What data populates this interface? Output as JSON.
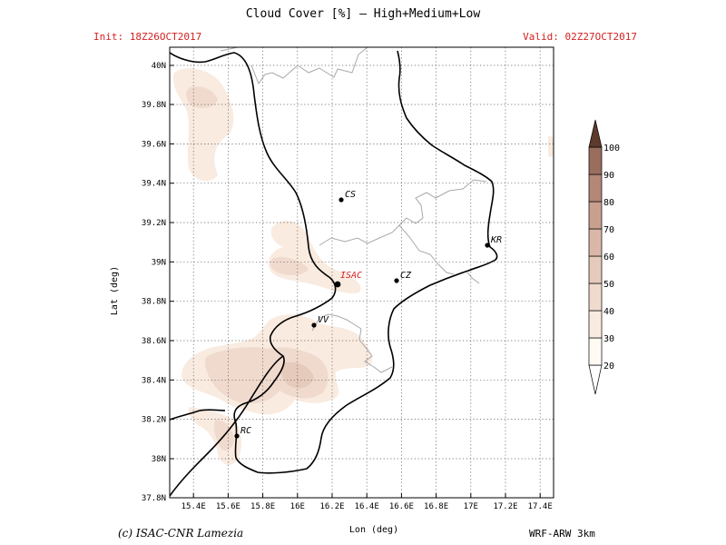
{
  "header": {
    "title": "Cloud Cover [%] — High+Medium+Low",
    "init": "Init: 18Z26OCT2017",
    "valid": "Valid: 02Z27OCT2017"
  },
  "axes": {
    "x_label": "Lon (deg)",
    "y_label": "Lat (deg)",
    "x_ticks": [
      "15.4E",
      "15.6E",
      "15.8E",
      "16E",
      "16.2E",
      "16.4E",
      "16.6E",
      "16.8E",
      "17E",
      "17.2E",
      "17.4E"
    ],
    "y_ticks": [
      "40N",
      "39.8N",
      "39.6N",
      "39.4N",
      "39.2N",
      "39N",
      "38.8N",
      "38.6N",
      "38.4N",
      "38.2N",
      "38N",
      "37.8N"
    ]
  },
  "colorbar": {
    "levels": [
      "20",
      "30",
      "40",
      "50",
      "60",
      "70",
      "80",
      "90",
      "100"
    ],
    "colors": [
      "#fffbf4",
      "#f9ebe0",
      "#f0dace",
      "#e6cabc",
      "#dab7a8",
      "#c9a090",
      "#b38878",
      "#9a6e5e",
      "#7d5545",
      "#5e3a2c"
    ]
  },
  "cities": {
    "cs": "CS",
    "cz": "CZ",
    "kr": "KR",
    "vv": "VV",
    "rc": "RC",
    "isac": "ISAC"
  },
  "footer": {
    "credit": "(c) ISAC-CNR Lamezia",
    "model": "WRF-ARW 3km"
  }
}
